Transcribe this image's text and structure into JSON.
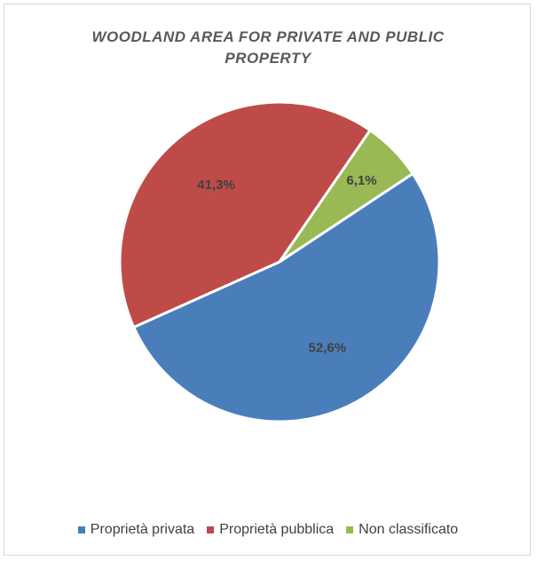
{
  "chart_data": {
    "type": "pie",
    "title_lines": [
      "WOODLAND AREA FOR PRIVATE AND PUBLIC",
      "PROPERTY"
    ],
    "series": [
      {
        "name": "Proprietà privata",
        "value": 52.6,
        "label": "52,6%",
        "color": "#4a7ebb"
      },
      {
        "name": "Proprietà pubblica",
        "value": 41.3,
        "label": "41,3%",
        "color": "#be4b48"
      },
      {
        "name": "Non classificato",
        "value": 6.1,
        "label": "6,1%",
        "color": "#98b954"
      }
    ],
    "legend_position": "bottom"
  }
}
